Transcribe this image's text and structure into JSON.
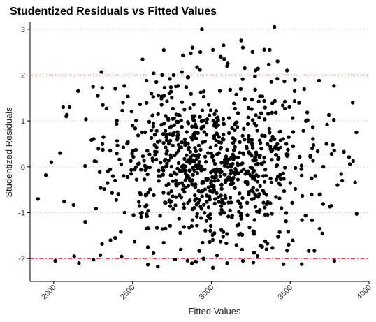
{
  "chart_data": {
    "type": "scatter",
    "title": "Studentized Residuals vs Fitted Values",
    "xlabel": "Fitted Values",
    "ylabel": "Studentized Residuals",
    "xlim": [
      1850,
      4000
    ],
    "ylim": [
      -2.5,
      3.15
    ],
    "x_ticks": [
      "2000",
      "2500",
      "3000",
      "3500",
      "4000"
    ],
    "y_ticks": [
      "3",
      "2",
      "1",
      "0",
      "-1",
      "-2"
    ],
    "grid": "horizontal dotted at y ticks",
    "reference_lines": [
      2,
      -2
    ],
    "colors": {
      "points": "#000000",
      "reference_line": "#ff0000",
      "grid": "#cccccc"
    },
    "point_count_approx": 900,
    "points_sample": [
      [
        1900,
        -0.7
      ],
      [
        1950,
        -0.18
      ],
      [
        1985,
        0.1
      ],
      [
        2010,
        -2.05
      ],
      [
        2040,
        0.3
      ],
      [
        2060,
        1.3
      ],
      [
        2080,
        1.1
      ],
      [
        2100,
        1.3
      ],
      [
        2130,
        -1.95
      ],
      [
        2160,
        -2.1
      ],
      [
        2250,
        1.75
      ],
      [
        2280,
        1.55
      ],
      [
        2360,
        -1.6
      ],
      [
        2440,
        1.4
      ],
      [
        2500,
        0.9
      ],
      [
        2620,
        1.6
      ],
      [
        2700,
        1.55
      ],
      [
        2760,
        2.0
      ],
      [
        2850,
        1.95
      ],
      [
        2880,
        2.6
      ],
      [
        2940,
        3.0
      ],
      [
        2930,
        2.5
      ],
      [
        3010,
        2.55
      ],
      [
        3060,
        2.4
      ],
      [
        3100,
        2.2
      ],
      [
        3200,
        2.6
      ],
      [
        3280,
        2.1
      ],
      [
        3370,
        2.55
      ],
      [
        3400,
        3.05
      ],
      [
        3420,
        2.3
      ],
      [
        3480,
        2.1
      ],
      [
        3530,
        1.9
      ],
      [
        3600,
        1.0
      ],
      [
        3640,
        0.4
      ],
      [
        3660,
        -0.2
      ],
      [
        3690,
        -0.6
      ],
      [
        3730,
        0.5
      ],
      [
        3760,
        -0.85
      ],
      [
        3780,
        -2.05
      ],
      [
        3800,
        -0.4
      ],
      [
        3830,
        -0.3
      ],
      [
        3920,
        0.75
      ],
      [
        2950,
        -2.0
      ],
      [
        3010,
        -2.2
      ],
      [
        3100,
        -2.1
      ],
      [
        3200,
        -2.05
      ],
      [
        3350,
        -1.8
      ],
      [
        2600,
        -1.35
      ],
      [
        2450,
        -1.0
      ],
      [
        2200,
        -1.2
      ]
    ]
  }
}
